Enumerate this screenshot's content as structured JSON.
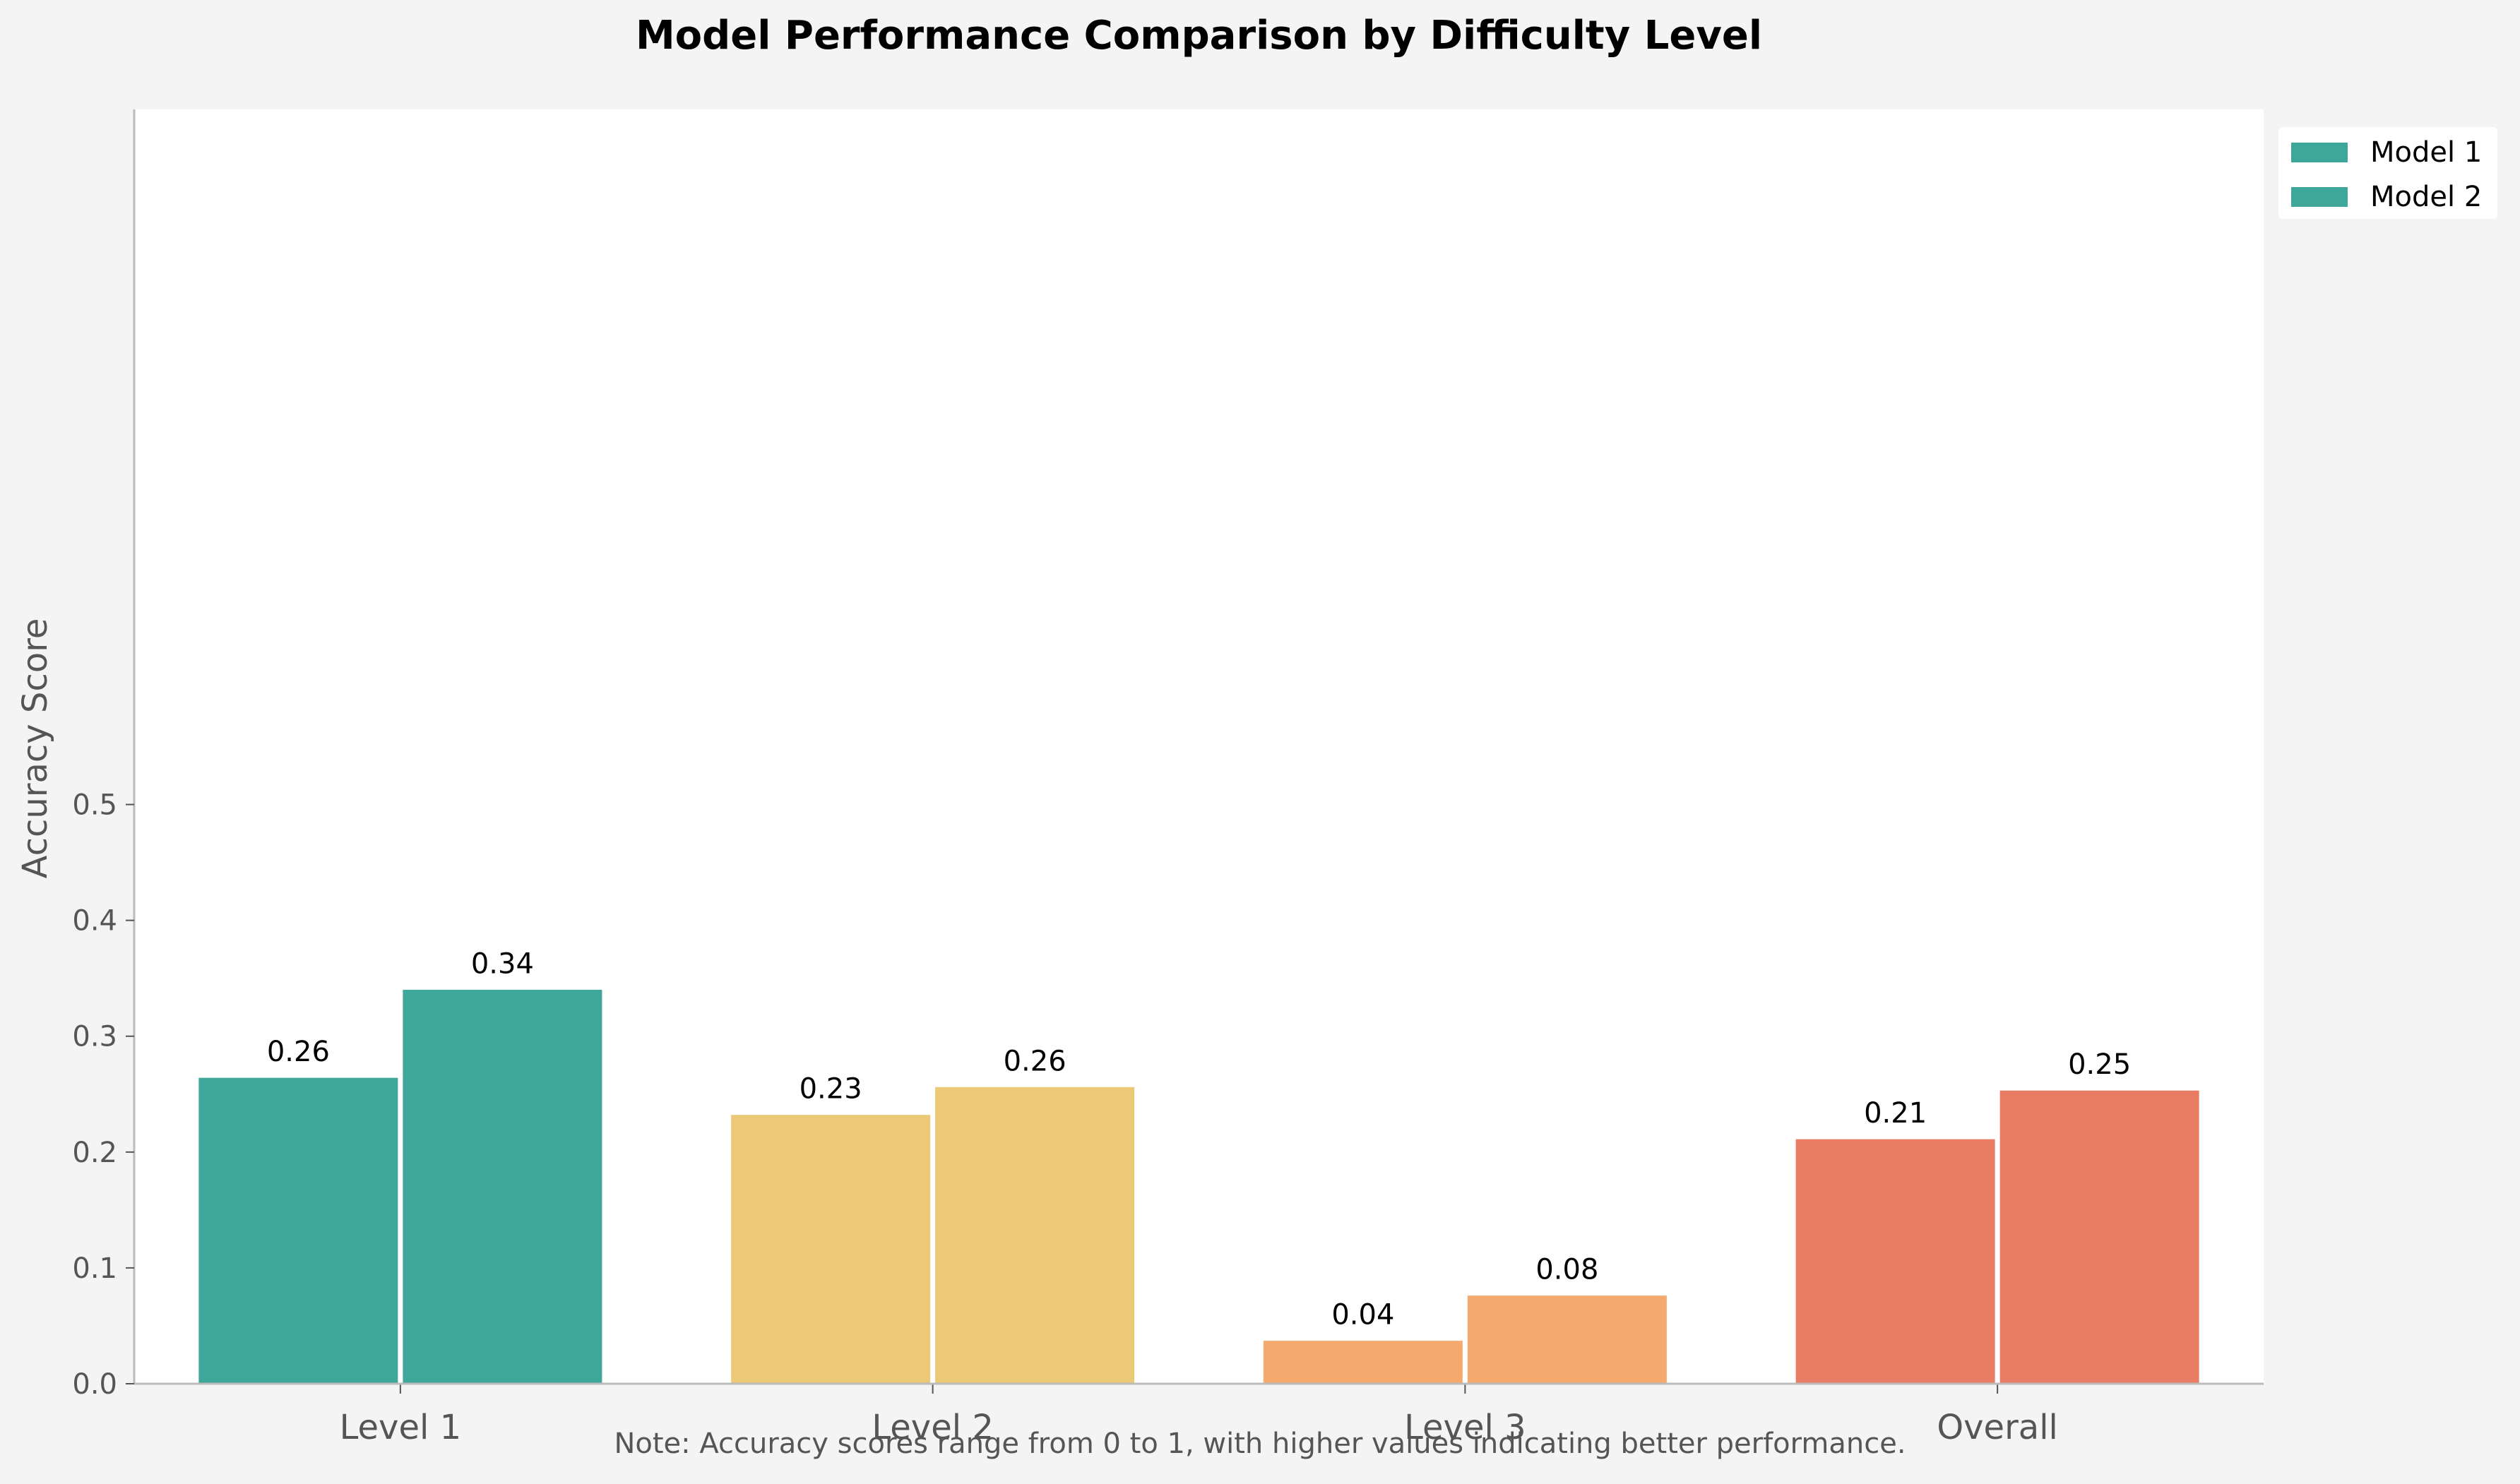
{
  "chart_data": {
    "type": "bar",
    "title": "Model Performance Comparison by Difficulty Level",
    "xlabel": "",
    "ylabel": "Accuracy Score",
    "categories": [
      "Level 1",
      "Level 2",
      "Level 3",
      "Overall"
    ],
    "series": [
      {
        "name": "Model 1",
        "values": [
          0.265,
          0.233,
          0.038,
          0.212
        ],
        "labels": [
          "0.26",
          "0.23",
          "0.04",
          "0.21"
        ]
      },
      {
        "name": "Model 2",
        "values": [
          0.341,
          0.257,
          0.077,
          0.254
        ],
        "labels": [
          "0.34",
          "0.26",
          "0.08",
          "0.25"
        ]
      }
    ],
    "category_colors": [
      "#3fa79a",
      "#ebc977",
      "#f4a96e",
      "#e87d63"
    ],
    "legend_colors": [
      "#3fa79a",
      "#3fa79a"
    ],
    "yticks": [
      "0.0",
      "0.1",
      "0.2",
      "0.3",
      "0.4",
      "0.5"
    ],
    "ylim": [
      0,
      1.1
    ],
    "grid": false,
    "legend_position": "upper right, outside plot"
  },
  "note": "Note: Accuracy scores range from 0 to 1, with higher values indicating better performance."
}
